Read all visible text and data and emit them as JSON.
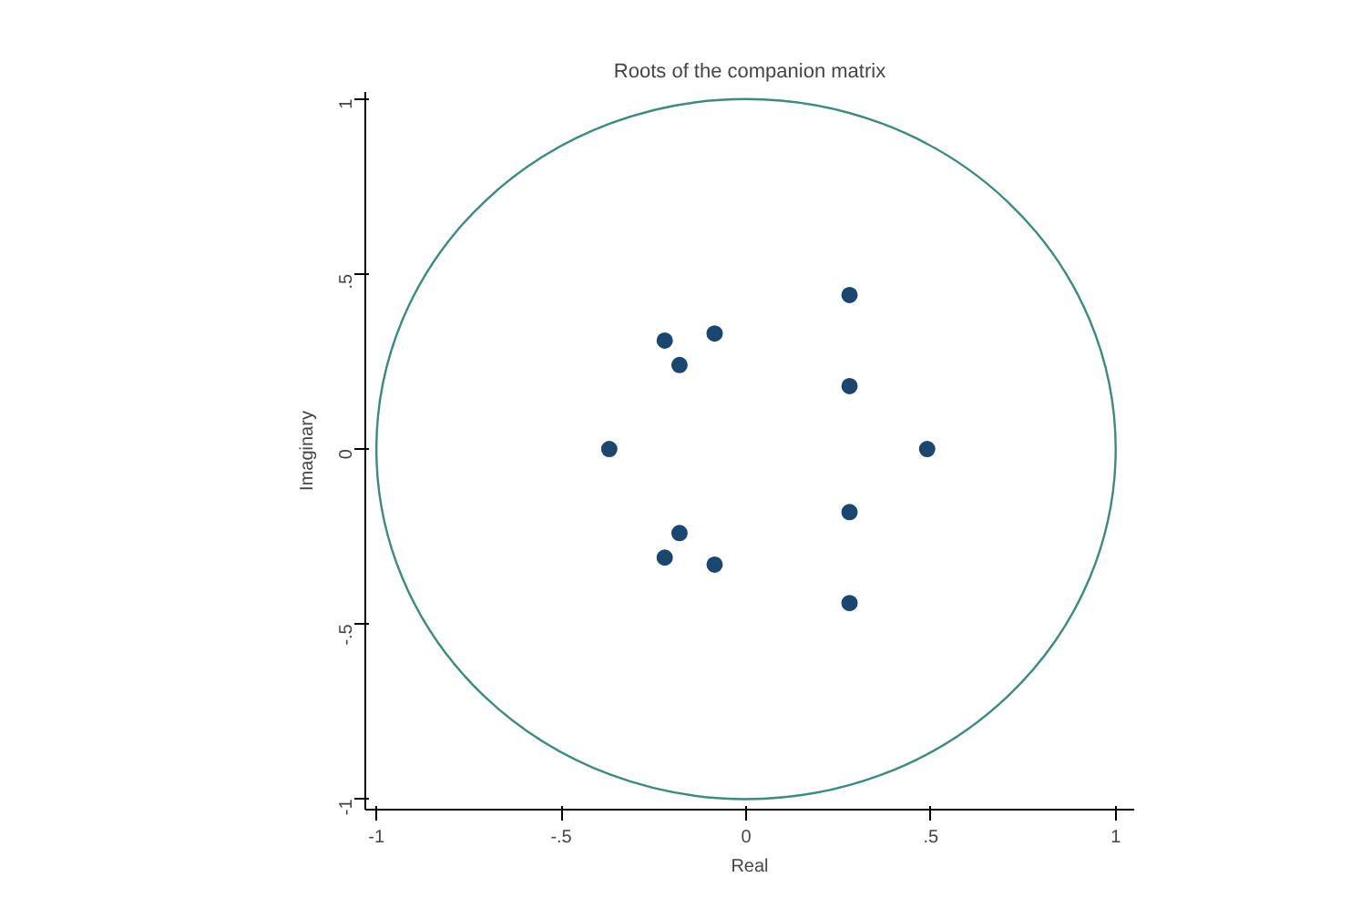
{
  "chart_data": {
    "type": "scatter",
    "title": "Roots of the companion matrix",
    "xlabel": "Real",
    "ylabel": "Imaginary",
    "xlim": [
      -1.03,
      1.05
    ],
    "ylim": [
      -1.03,
      1.02
    ],
    "xticks": [
      {
        "value": -1,
        "label": "-1"
      },
      {
        "value": -0.5,
        "label": "-.5"
      },
      0,
      {
        "value": 0.5,
        "label": ".5"
      },
      1
    ],
    "yticks": [
      {
        "value": -1,
        "label": "-1"
      },
      {
        "value": -0.5,
        "label": "-.5"
      },
      0,
      {
        "value": 0.5,
        "label": ".5"
      },
      1
    ],
    "grid": false,
    "marker": "circle",
    "series": [
      {
        "color": "#1a476f",
        "x": [
          0.28,
          0.28,
          0.49,
          0.28,
          0.28,
          -0.22,
          -0.085,
          -0.18,
          -0.37,
          -0.18,
          -0.22,
          -0.085
        ],
        "values": [
          0.44,
          0.18,
          0,
          -0.18,
          -0.44,
          0.31,
          0.33,
          0.24,
          0,
          -0.24,
          -0.31,
          -0.33
        ]
      }
    ]
  }
}
